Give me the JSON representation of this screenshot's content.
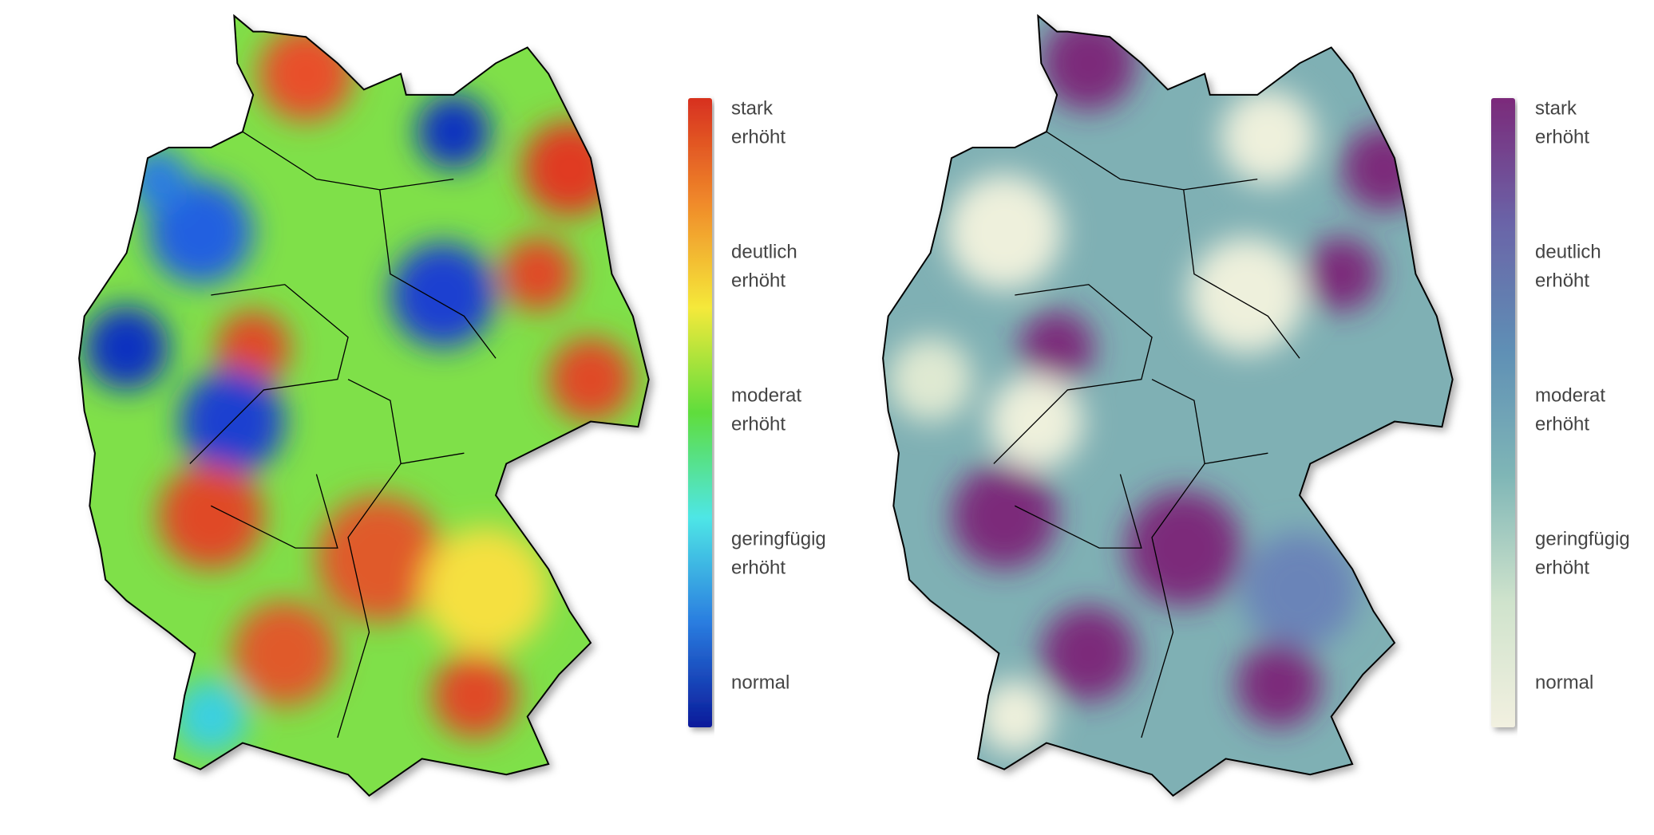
{
  "maps": [
    {
      "legend": [
        [
          "stark",
          "erhöht"
        ],
        [
          "deutlich",
          "erhöht"
        ],
        [
          "moderat",
          "erhöht"
        ],
        [
          "geringfügig",
          "erhöht"
        ],
        [
          "normal"
        ]
      ],
      "colors": [
        "#d7301f",
        "#f08a2a",
        "#f5e93a",
        "#5fdd3c",
        "#4ee6e6",
        "#2a7de0",
        "#0a1a9a"
      ]
    },
    {
      "legend": [
        [
          "stark",
          "erhöht"
        ],
        [
          "deutlich",
          "erhöht"
        ],
        [
          "moderat",
          "erhöht"
        ],
        [
          "geringfügig",
          "erhöht"
        ],
        [
          "normal"
        ]
      ],
      "colors": [
        "#7b2a7a",
        "#6a64a8",
        "#5f8fb5",
        "#7fb6b6",
        "#cfe3cc",
        "#f2f0e0"
      ]
    }
  ]
}
